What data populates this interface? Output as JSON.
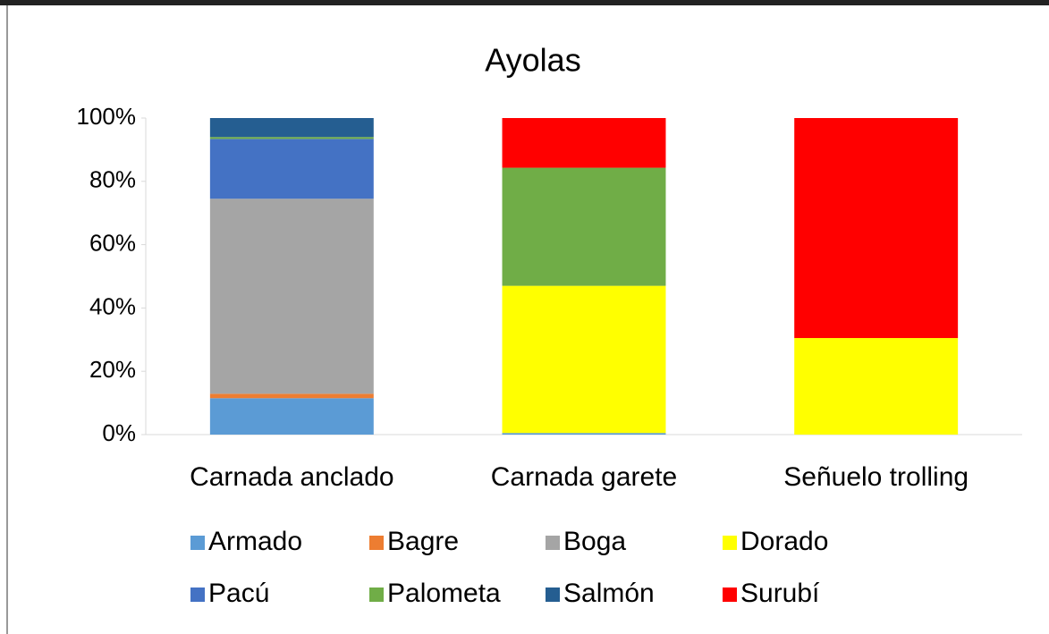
{
  "chart_data": {
    "type": "bar",
    "stacked": true,
    "title": "Ayolas",
    "categories": [
      "Carnada anclado",
      "Carnada garete",
      "Señuelo trolling"
    ],
    "series": [
      {
        "name": "Armado",
        "color": "#5b9bd5",
        "values": [
          11.5,
          0.5,
          0
        ]
      },
      {
        "name": "Bagre",
        "color": "#ed7d31",
        "values": [
          1.4,
          0,
          0
        ]
      },
      {
        "name": "Boga",
        "color": "#a5a5a5",
        "values": [
          61.6,
          0,
          0
        ]
      },
      {
        "name": "Dorado",
        "color": "#ffff00",
        "values": [
          0,
          46.5,
          30.5
        ]
      },
      {
        "name": "Pacú",
        "color": "#4472c4",
        "values": [
          18.9,
          0,
          0
        ]
      },
      {
        "name": "Palometa",
        "color": "#70ad47",
        "values": [
          0.6,
          37.3,
          0
        ]
      },
      {
        "name": "Salmón",
        "color": "#255e91",
        "values": [
          6,
          0,
          0
        ]
      },
      {
        "name": "Surubí",
        "color": "#ff0000",
        "values": [
          0,
          15.7,
          69.5
        ]
      }
    ],
    "ylim": [
      0,
      100
    ],
    "yticks": [
      {
        "value": 0,
        "label": "0%"
      },
      {
        "value": 20,
        "label": "20%"
      },
      {
        "value": 40,
        "label": "40%"
      },
      {
        "value": 60,
        "label": "60%"
      },
      {
        "value": 80,
        "label": "80%"
      },
      {
        "value": 100,
        "label": "100%"
      }
    ],
    "grid": false,
    "legend": "bottom"
  }
}
